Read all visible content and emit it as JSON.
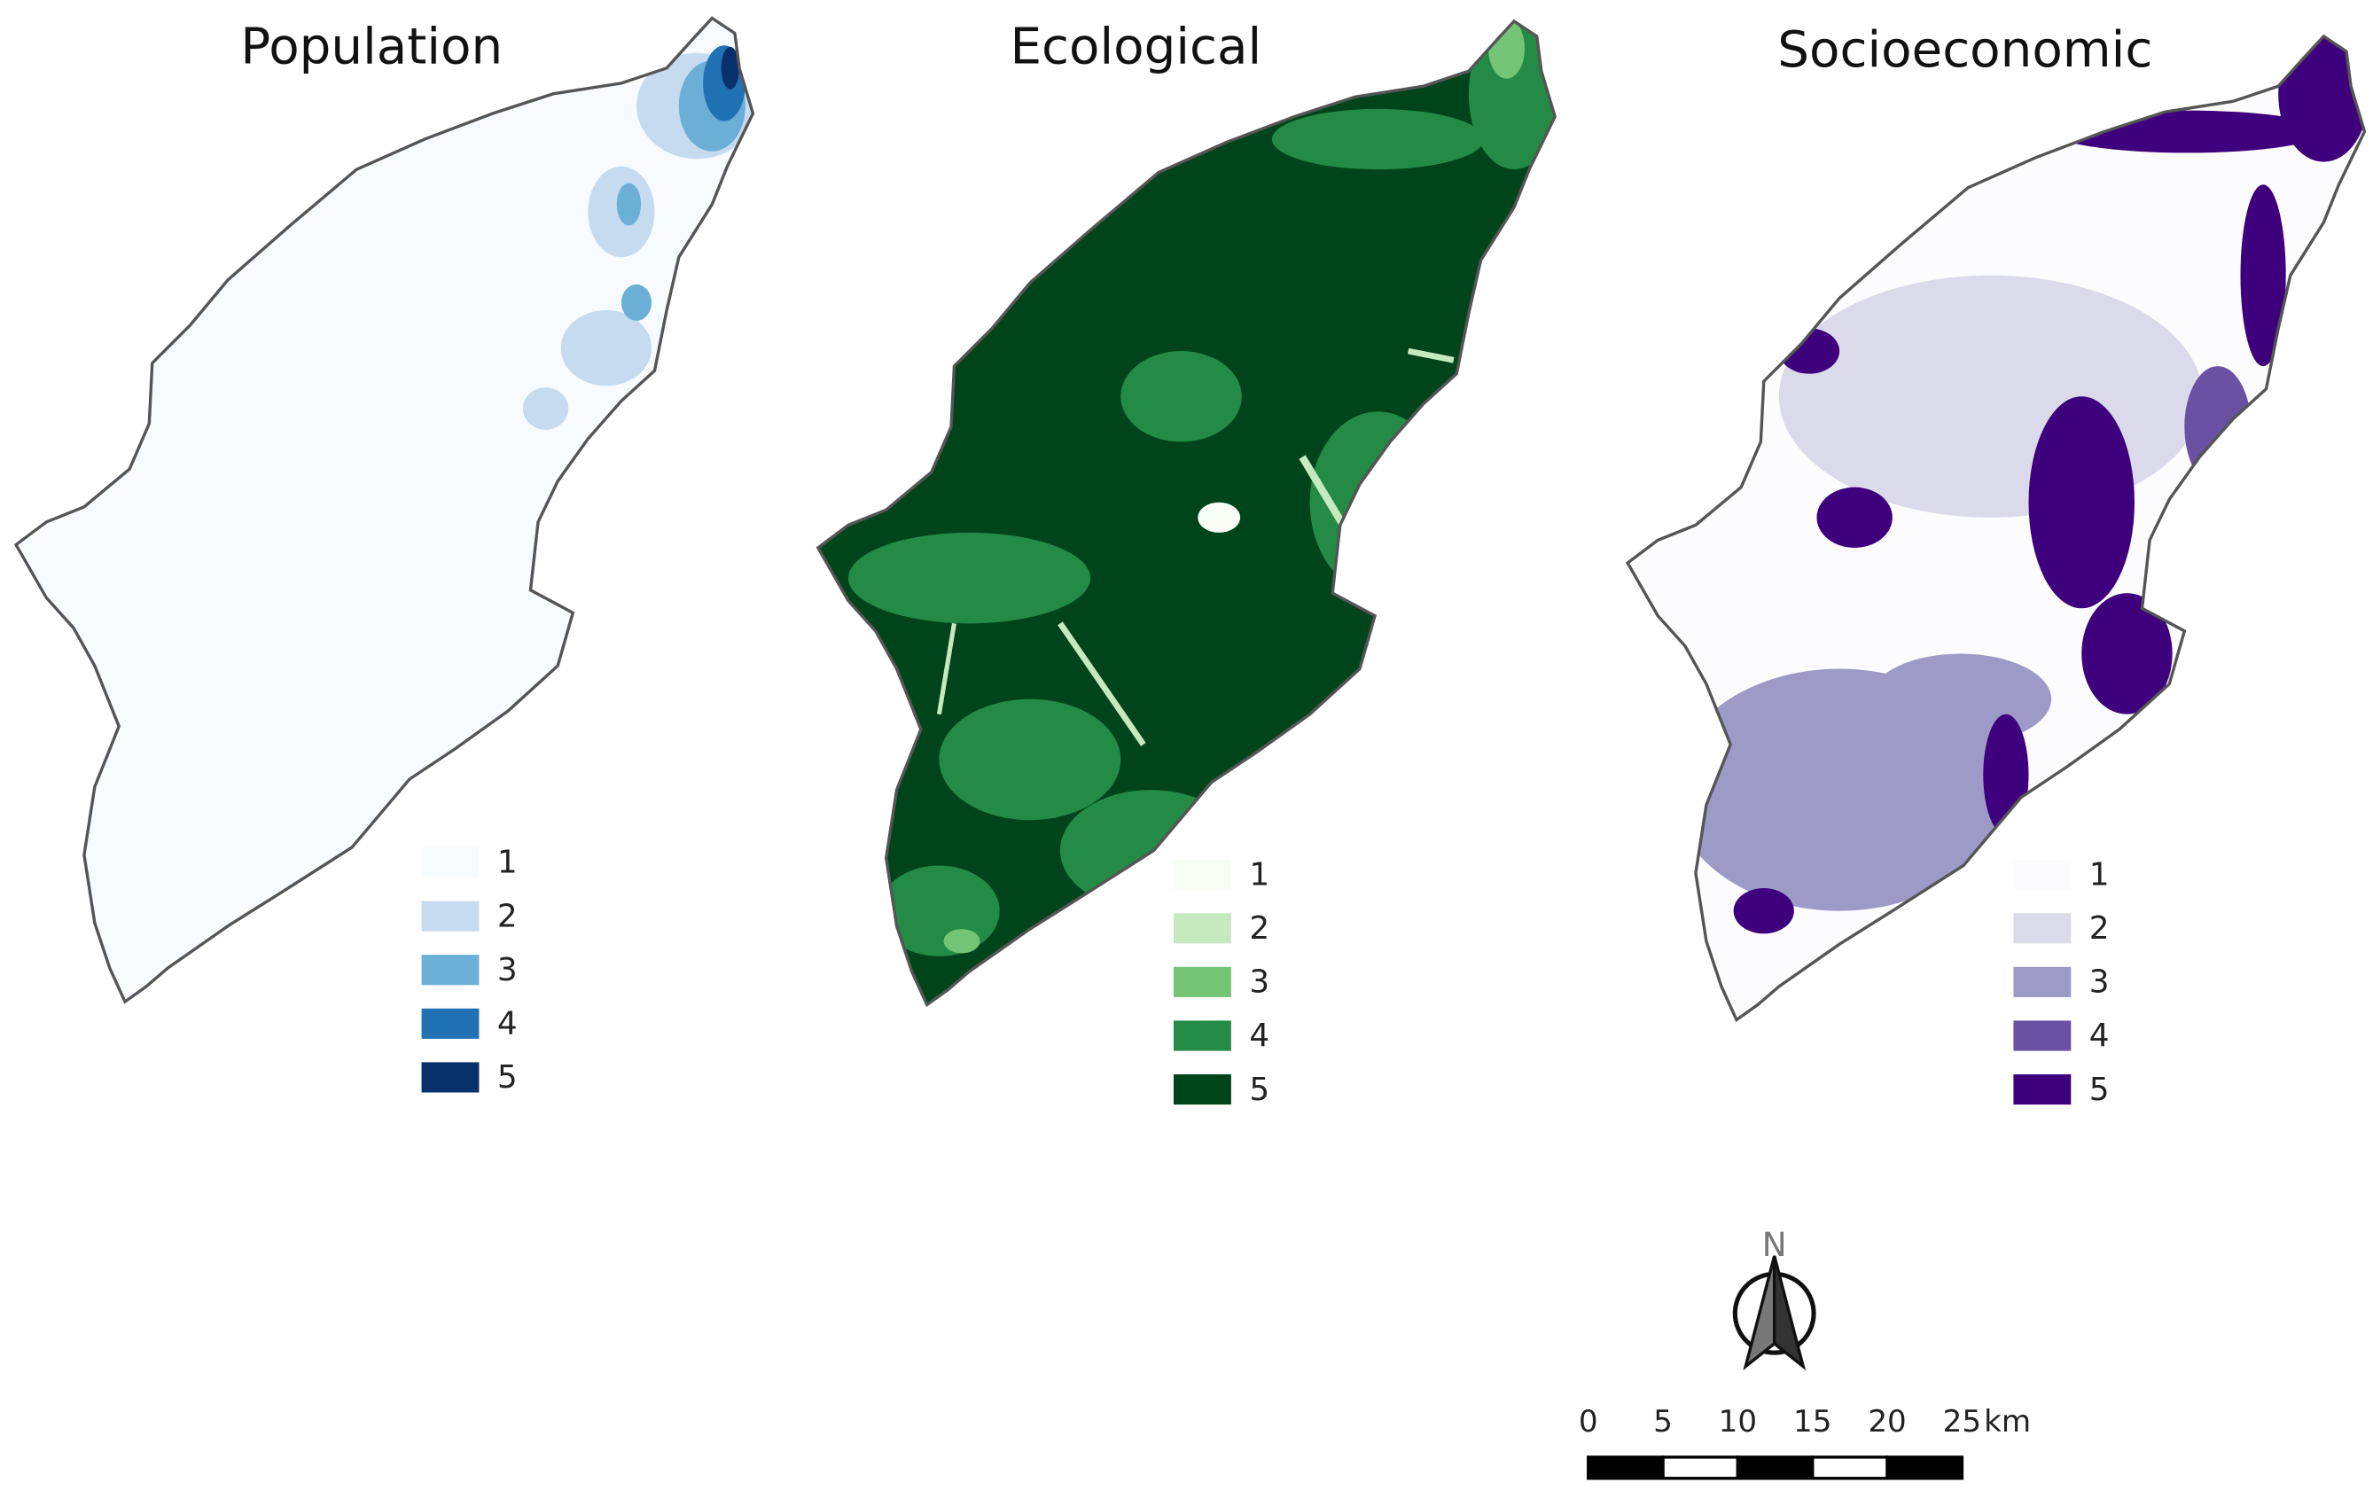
{
  "maps": [
    {
      "title": "Population",
      "legend": [
        {
          "label": "1",
          "color": "#f7fbff"
        },
        {
          "label": "2",
          "color": "#c6dbef"
        },
        {
          "label": "3",
          "color": "#6baed6"
        },
        {
          "label": "4",
          "color": "#2171b5"
        },
        {
          "label": "5",
          "color": "#08306b"
        }
      ]
    },
    {
      "title": "Ecological",
      "legend": [
        {
          "label": "1",
          "color": "#f7fcf5"
        },
        {
          "label": "2",
          "color": "#c7e9c0"
        },
        {
          "label": "3",
          "color": "#74c476"
        },
        {
          "label": "4",
          "color": "#238b45"
        },
        {
          "label": "5",
          "color": "#00441b"
        }
      ]
    },
    {
      "title": "Socioeconomic",
      "legend": [
        {
          "label": "1",
          "color": "#fcfbfd"
        },
        {
          "label": "2",
          "color": "#dadaeb"
        },
        {
          "label": "3",
          "color": "#9e9ac8"
        },
        {
          "label": "4",
          "color": "#6a51a3"
        },
        {
          "label": "5",
          "color": "#3f007d"
        }
      ]
    }
  ],
  "north": "N",
  "scale_bar": {
    "ticks": [
      "0",
      "5",
      "10",
      "15",
      "20",
      "25"
    ],
    "unit": "km"
  }
}
